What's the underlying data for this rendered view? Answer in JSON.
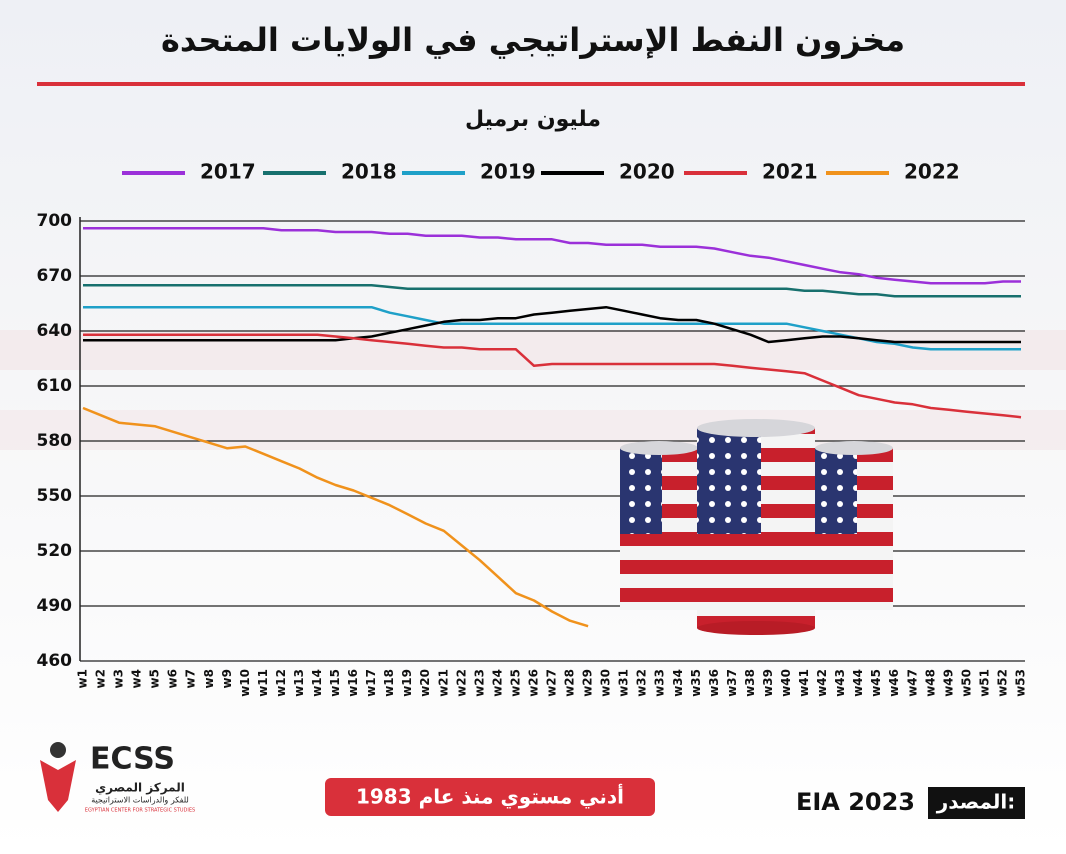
{
  "chart_data": {
    "type": "line",
    "title": "مخزون النفط الإستراتيجي في الولايات المتحدة",
    "subtitle": "مليون برميل",
    "annotation": "أدني مستوي منذ عام 1983",
    "source_label": "المصدر:",
    "source": "EIA 2023",
    "logo": {
      "name": "ECSS",
      "arabic": "المركز المصري",
      "arabic_sub": "للفكر والدراسات الاستراتيجية",
      "english": "EGYPTIAN CENTER FOR STRATEGIC STUDIES"
    },
    "categories": [
      "w1",
      "w2",
      "w3",
      "w4",
      "w5",
      "w6",
      "w7",
      "w8",
      "w9",
      "w10",
      "w11",
      "w12",
      "w13",
      "w14",
      "w15",
      "w16",
      "w17",
      "w18",
      "w19",
      "w20",
      "w21",
      "w22",
      "w23",
      "w24",
      "w25",
      "w26",
      "w27",
      "w28",
      "w29",
      "w30",
      "w31",
      "w32",
      "w33",
      "w34",
      "w35",
      "w36",
      "w37",
      "w38",
      "w39",
      "w40",
      "w41",
      "w42",
      "w43",
      "w44",
      "w45",
      "w46",
      "w47",
      "w48",
      "w49",
      "w50",
      "w51",
      "w52",
      "w53"
    ],
    "ylim": [
      460,
      700
    ],
    "yticks": [
      460,
      490,
      520,
      550,
      580,
      610,
      640,
      670,
      700
    ],
    "grid": true,
    "legend": "top",
    "series": [
      {
        "name": "2017",
        "color": "#9b30d9",
        "values": [
          696,
          696,
          696,
          696,
          696,
          696,
          696,
          696,
          696,
          696,
          696,
          695,
          695,
          695,
          694,
          694,
          694,
          693,
          693,
          692,
          692,
          692,
          691,
          691,
          690,
          690,
          690,
          688,
          688,
          687,
          687,
          687,
          686,
          686,
          686,
          685,
          683,
          681,
          680,
          678,
          676,
          674,
          672,
          671,
          669,
          668,
          667,
          666,
          666,
          666,
          666,
          667,
          667
        ]
      },
      {
        "name": "2018",
        "color": "#17706e",
        "values": [
          665,
          665,
          665,
          665,
          665,
          665,
          665,
          665,
          665,
          665,
          665,
          665,
          665,
          665,
          665,
          665,
          665,
          664,
          663,
          663,
          663,
          663,
          663,
          663,
          663,
          663,
          663,
          663,
          663,
          663,
          663,
          663,
          663,
          663,
          663,
          663,
          663,
          663,
          663,
          663,
          662,
          662,
          661,
          660,
          660,
          659,
          659,
          659,
          659,
          659,
          659,
          659,
          659
        ]
      },
      {
        "name": "2019",
        "color": "#1fa0c8",
        "values": [
          653,
          653,
          653,
          653,
          653,
          653,
          653,
          653,
          653,
          653,
          653,
          653,
          653,
          653,
          653,
          653,
          653,
          650,
          648,
          646,
          644,
          644,
          644,
          644,
          644,
          644,
          644,
          644,
          644,
          644,
          644,
          644,
          644,
          644,
          644,
          644,
          644,
          644,
          644,
          644,
          642,
          640,
          638,
          636,
          634,
          633,
          631,
          630,
          630,
          630,
          630,
          630,
          630
        ]
      },
      {
        "name": "2020",
        "color": "#000000",
        "values": [
          635,
          635,
          635,
          635,
          635,
          635,
          635,
          635,
          635,
          635,
          635,
          635,
          635,
          635,
          635,
          636,
          637,
          639,
          641,
          643,
          645,
          646,
          646,
          647,
          647,
          649,
          650,
          651,
          652,
          653,
          651,
          649,
          647,
          646,
          646,
          644,
          641,
          638,
          634,
          635,
          636,
          637,
          637,
          636,
          635,
          634,
          634,
          634,
          634,
          634,
          634,
          634,
          634
        ]
      },
      {
        "name": "2021",
        "color": "#d9303a",
        "values": [
          638,
          638,
          638,
          638,
          638,
          638,
          638,
          638,
          638,
          638,
          638,
          638,
          638,
          638,
          637,
          636,
          635,
          634,
          633,
          632,
          631,
          631,
          630,
          630,
          630,
          621,
          622,
          622,
          622,
          622,
          622,
          622,
          622,
          622,
          622,
          622,
          621,
          620,
          619,
          618,
          617,
          613,
          609,
          605,
          603,
          601,
          600,
          598,
          597,
          596,
          595,
          594,
          593
        ]
      },
      {
        "name": "2022",
        "color": "#f0921c",
        "values": [
          598,
          594,
          590,
          589,
          588,
          585,
          582,
          579,
          576,
          577,
          573,
          569,
          565,
          560,
          556,
          553,
          549,
          545,
          540,
          535,
          531,
          523,
          515,
          506,
          497,
          493,
          487,
          482,
          479,
          null,
          null,
          null,
          null,
          null,
          null,
          null,
          null,
          null,
          null,
          null,
          null,
          null,
          null,
          null,
          null,
          null,
          null,
          null,
          null,
          null,
          null,
          null,
          null
        ]
      }
    ]
  }
}
